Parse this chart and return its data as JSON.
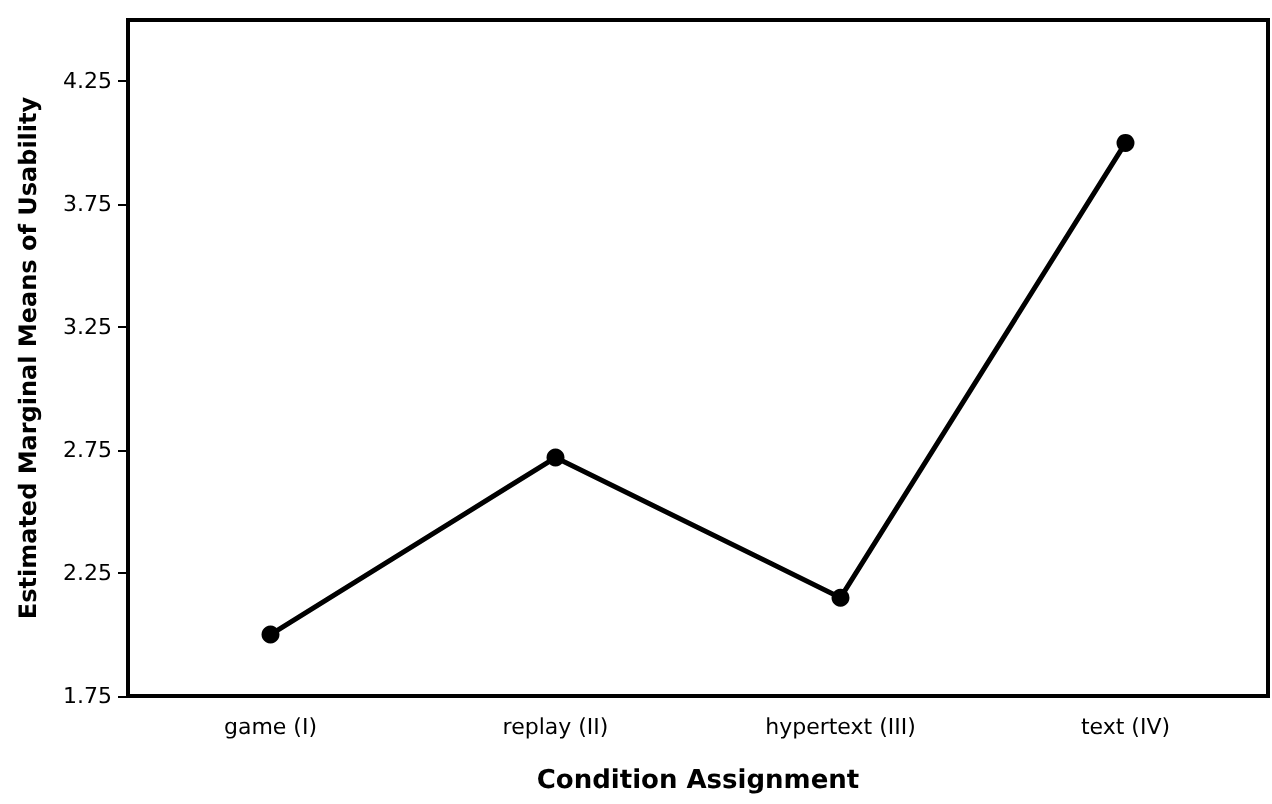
{
  "chart_data": {
    "type": "line",
    "xlabel": "Condition Assignment",
    "ylabel": "Estimated Marginal Means of Usability",
    "categories": [
      "game (I)",
      "replay (II)",
      "hypertext (III)",
      "text (IV)"
    ],
    "series": [
      {
        "color": "#000000",
        "values": [
          2.0,
          2.72,
          2.15,
          4.0
        ]
      }
    ],
    "ylim": [
      1.75,
      4.5
    ],
    "yticks": [
      1.75,
      2.25,
      2.75,
      3.25,
      3.75,
      4.25
    ],
    "grid": false,
    "marker": "circle",
    "line_style": "solid"
  }
}
